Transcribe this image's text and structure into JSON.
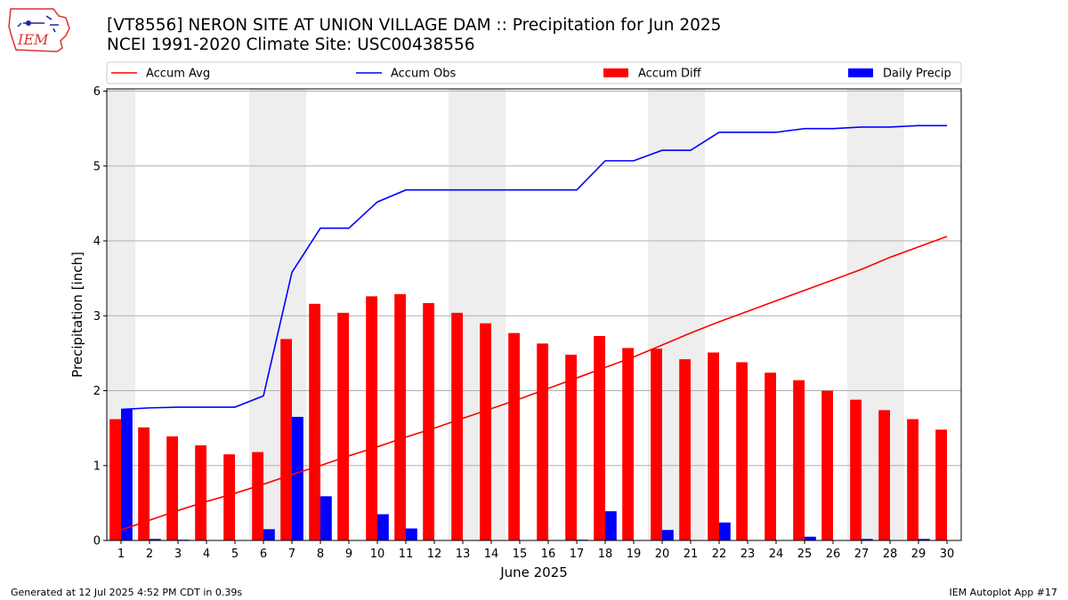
{
  "header": {
    "title_line1": "[VT8556] NERON SITE AT UNION VILLAGE DAM :: Precipitation for Jun 2025",
    "title_line2": "NCEI 1991-2020 Climate Site: USC00438556",
    "logo_text": "IEM"
  },
  "footer": {
    "left": "Generated at 12 Jul 2025 4:52 PM CDT in 0.39s",
    "right": "IEM Autoplot App #17"
  },
  "chart_data": {
    "type": "bar",
    "title": "[VT8556] NERON SITE AT UNION VILLAGE DAM :: Precipitation for Jun 2025",
    "xlabel": "June 2025",
    "ylabel": "Precipitation [inch]",
    "xlim": [
      0.5,
      30.5
    ],
    "ylim": [
      0,
      6.03
    ],
    "yticks": [
      0,
      1,
      2,
      3,
      4,
      5,
      6
    ],
    "categories": [
      1,
      2,
      3,
      4,
      5,
      6,
      7,
      8,
      9,
      10,
      11,
      12,
      13,
      14,
      15,
      16,
      17,
      18,
      19,
      20,
      21,
      22,
      23,
      24,
      25,
      26,
      27,
      28,
      29,
      30
    ],
    "weekend_bands": [
      [
        0.5,
        1.5
      ],
      [
        5.5,
        7.5
      ],
      [
        12.5,
        14.5
      ],
      [
        19.5,
        21.5
      ],
      [
        26.5,
        28.5
      ]
    ],
    "grid": true,
    "legend_position": "top",
    "series": [
      {
        "name": "Accum Avg",
        "kind": "line",
        "color": "#ff0000",
        "values": [
          0.14,
          0.27,
          0.4,
          0.52,
          0.63,
          0.75,
          0.88,
          1.0,
          1.13,
          1.25,
          1.38,
          1.5,
          1.63,
          1.76,
          1.89,
          2.03,
          2.17,
          2.31,
          2.45,
          2.61,
          2.77,
          2.92,
          3.06,
          3.2,
          3.34,
          3.48,
          3.62,
          3.78,
          3.92,
          4.06
        ]
      },
      {
        "name": "Accum Obs",
        "kind": "line",
        "color": "#0000ff",
        "values": [
          1.75,
          1.77,
          1.78,
          1.78,
          1.78,
          1.93,
          3.58,
          4.17,
          4.17,
          4.52,
          4.68,
          4.68,
          4.68,
          4.68,
          4.68,
          4.68,
          4.68,
          5.07,
          5.07,
          5.21,
          5.21,
          5.45,
          5.45,
          5.45,
          5.5,
          5.5,
          5.52,
          5.52,
          5.54,
          5.54
        ]
      },
      {
        "name": "Accum Diff",
        "kind": "bar",
        "color": "#ff0000",
        "values": [
          1.62,
          1.51,
          1.39,
          1.27,
          1.15,
          1.18,
          2.69,
          3.16,
          3.04,
          3.26,
          3.29,
          3.17,
          3.04,
          2.9,
          2.77,
          2.63,
          2.48,
          2.73,
          2.57,
          2.56,
          2.42,
          2.51,
          2.38,
          2.24,
          2.14,
          2.0,
          1.88,
          1.74,
          1.62,
          1.48
        ]
      },
      {
        "name": "Daily Precip",
        "kind": "bar",
        "color": "#0000ff",
        "values": [
          1.75,
          0.02,
          0.01,
          0,
          0,
          0.15,
          1.65,
          0.59,
          0,
          0.35,
          0.16,
          0,
          0,
          0,
          0,
          0,
          0.01,
          0.39,
          0,
          0.14,
          0,
          0.24,
          0,
          0,
          0.05,
          0,
          0.02,
          0,
          0.02,
          0
        ]
      }
    ]
  }
}
